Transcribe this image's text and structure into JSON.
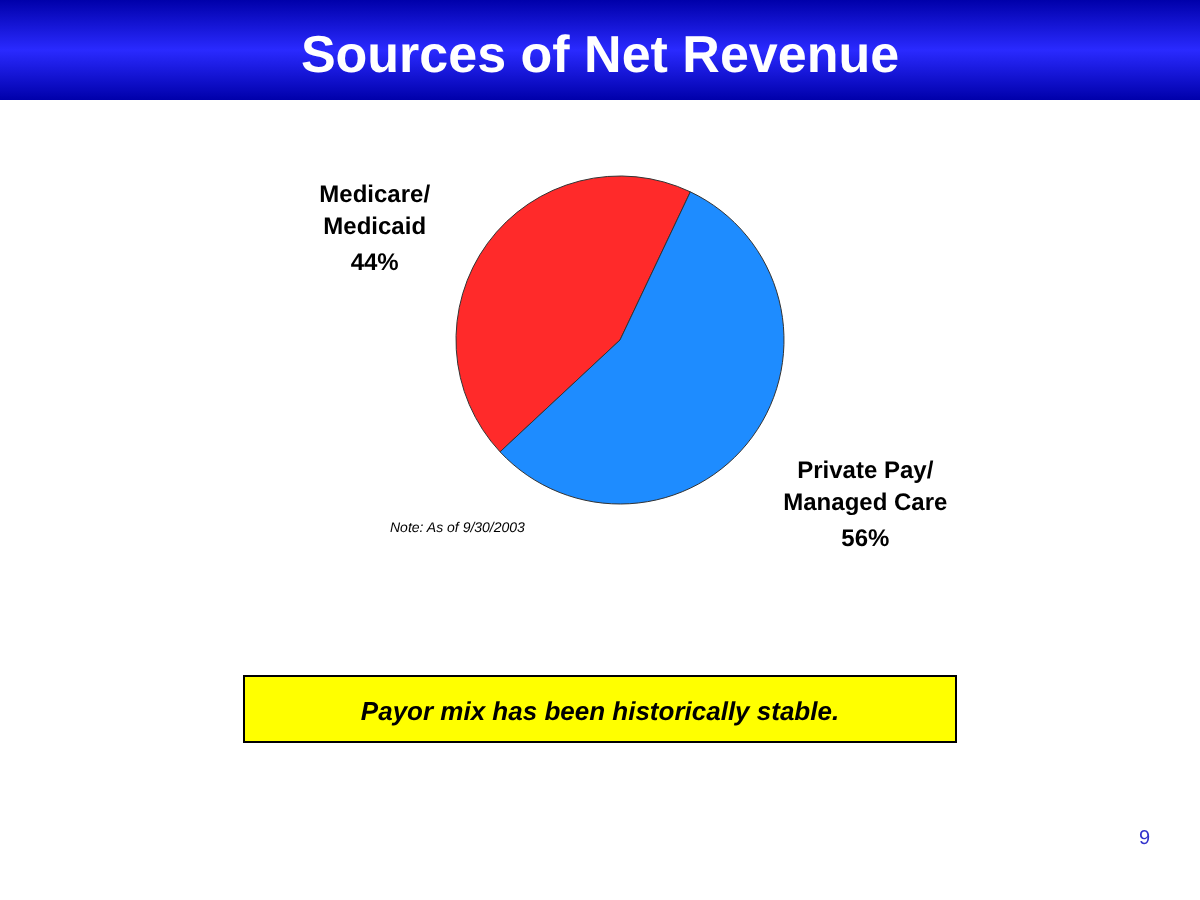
{
  "chart_data": {
    "type": "pie",
    "title": "Sources of Net Revenue",
    "categories": [
      "Medicare/ Medicaid",
      "Private Pay/ Managed Care"
    ],
    "values": [
      44,
      56
    ],
    "colors": [
      "#ff2a2a",
      "#1e8cff"
    ],
    "value_labels": [
      "44%",
      "56%"
    ],
    "annotations": [
      "Note: As of 9/30/2003",
      "Payor mix has been historically stable.",
      "9"
    ]
  }
}
